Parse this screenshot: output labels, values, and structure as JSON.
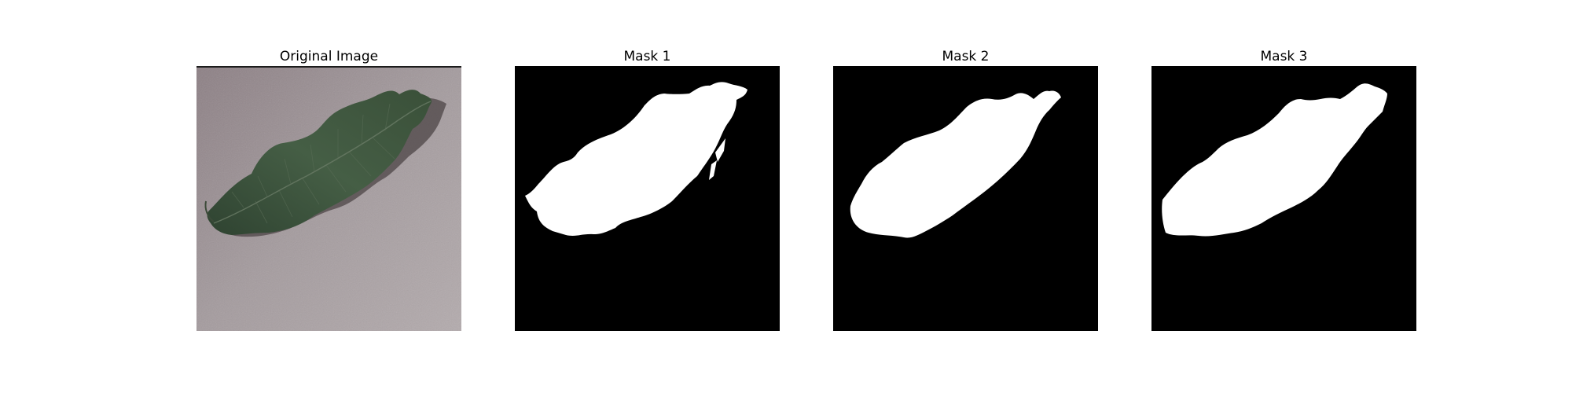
{
  "figure": {
    "panels": [
      {
        "title": "Original Image",
        "kind": "photo"
      },
      {
        "title": "Mask 1",
        "kind": "mask"
      },
      {
        "title": "Mask 2",
        "kind": "mask"
      },
      {
        "title": "Mask 3",
        "kind": "mask"
      }
    ],
    "colors": {
      "background": "#ffffff",
      "mask_foreground": "#ffffff",
      "mask_background": "#000000",
      "leaf": "#3a4f3b",
      "surface": "#a39a9d"
    }
  }
}
